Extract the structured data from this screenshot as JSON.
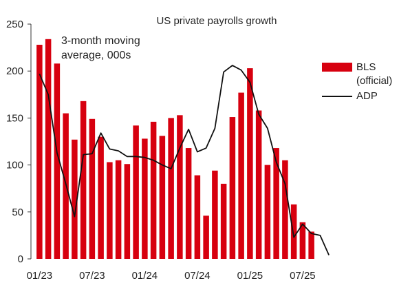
{
  "chart_data": {
    "type": "bar",
    "title": "US private payrolls growth",
    "annotation": "3-month moving average, 000s",
    "x_tick_labels": [
      "01/23",
      "07/23",
      "01/24",
      "07/24",
      "01/25",
      "07/25"
    ],
    "ylim": [
      0,
      250
    ],
    "y_ticks": [
      0,
      50,
      100,
      150,
      200,
      250
    ],
    "grid": false,
    "legend_position": "right",
    "colors": {
      "BLS (official)": "#d7000f",
      "ADP": "#111111"
    },
    "series": [
      {
        "name": "BLS (official)",
        "kind": "bar",
        "values": [
          228,
          234,
          208,
          155,
          127,
          168,
          149,
          130,
          103,
          105,
          101,
          142,
          128,
          146,
          131,
          150,
          153,
          118,
          89,
          46,
          94,
          80,
          151,
          177,
          203,
          158,
          100,
          118,
          105,
          58,
          39,
          29
        ]
      },
      {
        "name": "ADP",
        "kind": "line",
        "values": [
          197,
          175,
          113,
          80,
          45,
          111,
          112,
          134,
          117,
          115,
          109,
          109,
          108,
          105,
          100,
          96,
          118,
          138,
          114,
          118,
          139,
          199,
          206,
          201,
          188,
          154,
          139,
          103,
          80,
          23,
          37,
          27,
          25,
          4
        ]
      }
    ]
  },
  "legend": {
    "bls_label": "BLS\n(official)",
    "adp_label": "ADP"
  }
}
